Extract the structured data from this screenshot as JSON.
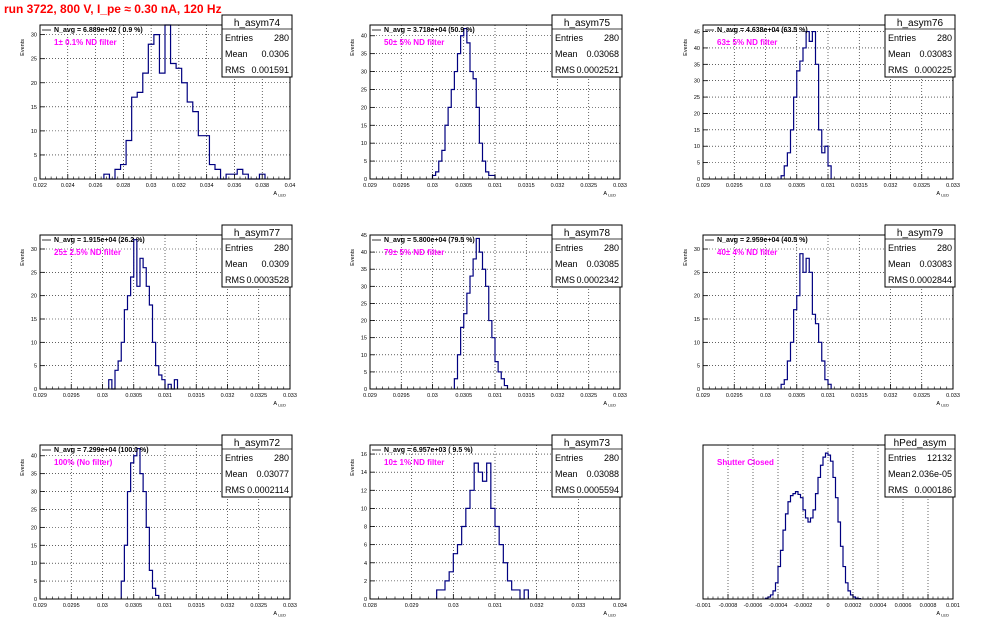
{
  "run_title": "run 3722,   800 V, I_pe ≈ 0.30 nA, 120 Hz",
  "colors": {
    "title": "#ff0000",
    "annotation": "#ff00ff",
    "histogram": "#000080",
    "frame": "#000000"
  },
  "chart_data": [
    {
      "type": "histogram",
      "stats_name": "h_asym74",
      "entries": "280",
      "mean": "0.0306",
      "rms": "0.001591",
      "navg": "N_avg = 6.889e+02 ( 0.9 %)",
      "annotation": "1± 0.1% ND filter",
      "xlim": [
        0.022,
        0.04
      ],
      "ylim": [
        0,
        32
      ],
      "xticks": [
        "0.022",
        "0.024",
        "0.026",
        "0.028",
        "0.03",
        "0.032",
        "0.034",
        "0.036",
        "0.038",
        "0.04"
      ],
      "yticks": [
        "0",
        "5",
        "10",
        "15",
        "20",
        "25",
        "30"
      ],
      "xlabel": "A_LED",
      "ylabel": "Events",
      "bins_start": 0.0266,
      "bin_width": 0.0004,
      "values": [
        1,
        0,
        2,
        3,
        8,
        17,
        18,
        22,
        28,
        30,
        22,
        32,
        24,
        23,
        20,
        16,
        14,
        9,
        9,
        3,
        2,
        0,
        1,
        1,
        2,
        1,
        0,
        0,
        1
      ]
    },
    {
      "type": "histogram",
      "stats_name": "h_asym75",
      "entries": "280",
      "mean": "0.03068",
      "rms": "0.0002521",
      "navg": "N_avg = 3.718e+04 (50.9 %)",
      "annotation": "50± 5% ND filter",
      "xlim": [
        0.029,
        0.033
      ],
      "ylim": [
        0,
        43
      ],
      "xticks": [
        "0.029",
        "0.0295",
        "0.03",
        "0.0305",
        "0.031",
        "0.0315",
        "0.032",
        "0.0325",
        "0.033"
      ],
      "yticks": [
        "0",
        "5",
        "10",
        "15",
        "20",
        "25",
        "30",
        "35",
        "40"
      ],
      "xlabel": "A_LED",
      "ylabel": "Events",
      "bins_start": 0.03,
      "bin_width": 5e-05,
      "values": [
        1,
        2,
        5,
        8,
        15,
        20,
        25,
        30,
        35,
        40,
        42,
        38,
        30,
        28,
        20,
        10,
        5,
        2,
        1,
        1
      ]
    },
    {
      "type": "histogram",
      "stats_name": "h_asym76",
      "entries": "280",
      "mean": "0.03083",
      "rms": "0.000225",
      "navg": "N_avg = 4.638e+04 (63.5 %)",
      "annotation": "63± 5% ND filter",
      "xlim": [
        0.029,
        0.033
      ],
      "ylim": [
        0,
        47
      ],
      "xticks": [
        "0.029",
        "0.0295",
        "0.03",
        "0.0305",
        "0.031",
        "0.0315",
        "0.032",
        "0.0325",
        "0.033"
      ],
      "yticks": [
        "0",
        "5",
        "10",
        "15",
        "20",
        "25",
        "30",
        "35",
        "40",
        "45"
      ],
      "xlabel": "A_LED",
      "ylabel": "Events",
      "bins_start": 0.03025,
      "bin_width": 5e-05,
      "values": [
        1,
        4,
        8,
        15,
        25,
        33,
        36,
        40,
        45,
        42,
        45,
        35,
        15,
        8,
        10,
        4
      ]
    },
    {
      "type": "histogram",
      "stats_name": "h_asym77",
      "entries": "280",
      "mean": "0.0309",
      "rms": "0.0003528",
      "navg": "N_avg = 1.915e+04 (26.2 %)",
      "annotation": "25± 2.5% ND filter",
      "xlim": [
        0.029,
        0.033
      ],
      "ylim": [
        0,
        33
      ],
      "xticks": [
        "0.029",
        "0.0295",
        "0.03",
        "0.0305",
        "0.031",
        "0.0315",
        "0.032",
        "0.0325",
        "0.033"
      ],
      "yticks": [
        "0",
        "5",
        "10",
        "15",
        "20",
        "25",
        "30"
      ],
      "xlabel": "A_LED",
      "ylabel": "Events",
      "bins_start": 0.0301,
      "bin_width": 5e-05,
      "values": [
        2,
        0,
        4,
        6,
        10,
        17,
        20,
        24,
        32,
        22,
        28,
        26,
        22,
        18,
        10,
        5,
        3,
        2,
        0,
        1,
        0,
        2
      ]
    },
    {
      "type": "histogram",
      "stats_name": "h_asym78",
      "entries": "280",
      "mean": "0.03085",
      "rms": "0.0002342",
      "navg": "N_avg = 5.800e+04 (79.5 %)",
      "annotation": "79± 5% ND filter",
      "xlim": [
        0.029,
        0.033
      ],
      "ylim": [
        0,
        45
      ],
      "xticks": [
        "0.029",
        "0.0295",
        "0.03",
        "0.0305",
        "0.031",
        "0.0315",
        "0.032",
        "0.0325",
        "0.033"
      ],
      "yticks": [
        "0",
        "5",
        "10",
        "15",
        "20",
        "25",
        "30",
        "35",
        "40",
        "45"
      ],
      "xlabel": "A_LED",
      "ylabel": "Events",
      "bins_start": 0.03035,
      "bin_width": 5e-05,
      "values": [
        3,
        10,
        18,
        22,
        28,
        33,
        38,
        44,
        40,
        35,
        30,
        20,
        15,
        8,
        5,
        3,
        1
      ]
    },
    {
      "type": "histogram",
      "stats_name": "h_asym79",
      "entries": "280",
      "mean": "0.03083",
      "rms": "0.0002844",
      "navg": "N_avg = 2.959e+04 (40.5 %)",
      "annotation": "40± 4% ND filter",
      "xlim": [
        0.029,
        0.033
      ],
      "ylim": [
        0,
        33
      ],
      "xticks": [
        "0.029",
        "0.0295",
        "0.03",
        "0.0305",
        "0.031",
        "0.0315",
        "0.032",
        "0.0325",
        "0.033"
      ],
      "yticks": [
        "0",
        "5",
        "10",
        "15",
        "20",
        "25",
        "30"
      ],
      "xlabel": "A_LED",
      "ylabel": "Events",
      "bins_start": 0.03025,
      "bin_width": 5e-05,
      "values": [
        1,
        2,
        6,
        10,
        17,
        20,
        29,
        25,
        28,
        25,
        16,
        14,
        10,
        6,
        2,
        1
      ]
    },
    {
      "type": "histogram",
      "stats_name": "h_asym72",
      "entries": "280",
      "mean": "0.03077",
      "rms": "0.0002114",
      "navg": "N_avg = 7.299e+04 (100.0 %)",
      "annotation": "100% (No filter)",
      "xlim": [
        0.029,
        0.033
      ],
      "ylim": [
        0,
        43
      ],
      "xticks": [
        "0.029",
        "0.0295",
        "0.03",
        "0.0305",
        "0.031",
        "0.0315",
        "0.032",
        "0.0325",
        "0.033"
      ],
      "yticks": [
        "0",
        "5",
        "10",
        "15",
        "20",
        "25",
        "30",
        "35",
        "40"
      ],
      "xlabel": "A_LED",
      "ylabel": "Events",
      "bins_start": 0.0303,
      "bin_width": 5e-05,
      "values": [
        5,
        15,
        30,
        38,
        40,
        42,
        35,
        30,
        20,
        8,
        3,
        1
      ]
    },
    {
      "type": "histogram",
      "stats_name": "h_asym73",
      "entries": "280",
      "mean": "0.03088",
      "rms": "0.0005594",
      "navg": "N_avg = 6.957e+03 ( 9.5 %)",
      "annotation": "10± 1% ND filter",
      "xlim": [
        0.028,
        0.034
      ],
      "ylim": [
        0,
        17
      ],
      "xticks": [
        "0.028",
        "0.029",
        "0.03",
        "0.031",
        "0.032",
        "0.033",
        "0.034"
      ],
      "yticks": [
        "0",
        "2",
        "4",
        "6",
        "8",
        "10",
        "12",
        "14",
        "16"
      ],
      "xlabel": "A_LED",
      "ylabel": "Events",
      "bins_start": 0.0296,
      "bin_width": 0.0001,
      "values": [
        1,
        1,
        2,
        3,
        5,
        6,
        8,
        10,
        12,
        15,
        14,
        13,
        15,
        10,
        8,
        6,
        4,
        2,
        1,
        1,
        0,
        1
      ]
    },
    {
      "type": "histogram",
      "stats_name": "hPed_asym",
      "entries": "12132",
      "mean": "2.036e-05",
      "rms": "0.000186",
      "navg": "",
      "annotation": "Shutter Closed",
      "xlim": [
        -0.001,
        0.001
      ],
      "ylim": [
        0,
        380
      ],
      "xticks": [
        "-0.001",
        "-0.0008",
        "-0.0006",
        "-0.0004",
        "-0.0002",
        "0",
        "0.0002",
        "0.0004",
        "0.0006",
        "0.0008",
        "0.001"
      ],
      "yticks": [],
      "xlabel": "A_LED",
      "ylabel": "",
      "bins_start": -0.0005,
      "bin_width": 2e-05,
      "values": [
        2,
        5,
        10,
        20,
        40,
        80,
        120,
        170,
        210,
        240,
        255,
        260,
        265,
        258,
        250,
        220,
        200,
        190,
        200,
        220,
        260,
        300,
        330,
        350,
        360,
        355,
        340,
        300,
        250,
        190,
        130,
        80,
        40,
        20,
        10,
        5,
        2,
        1
      ]
    }
  ]
}
